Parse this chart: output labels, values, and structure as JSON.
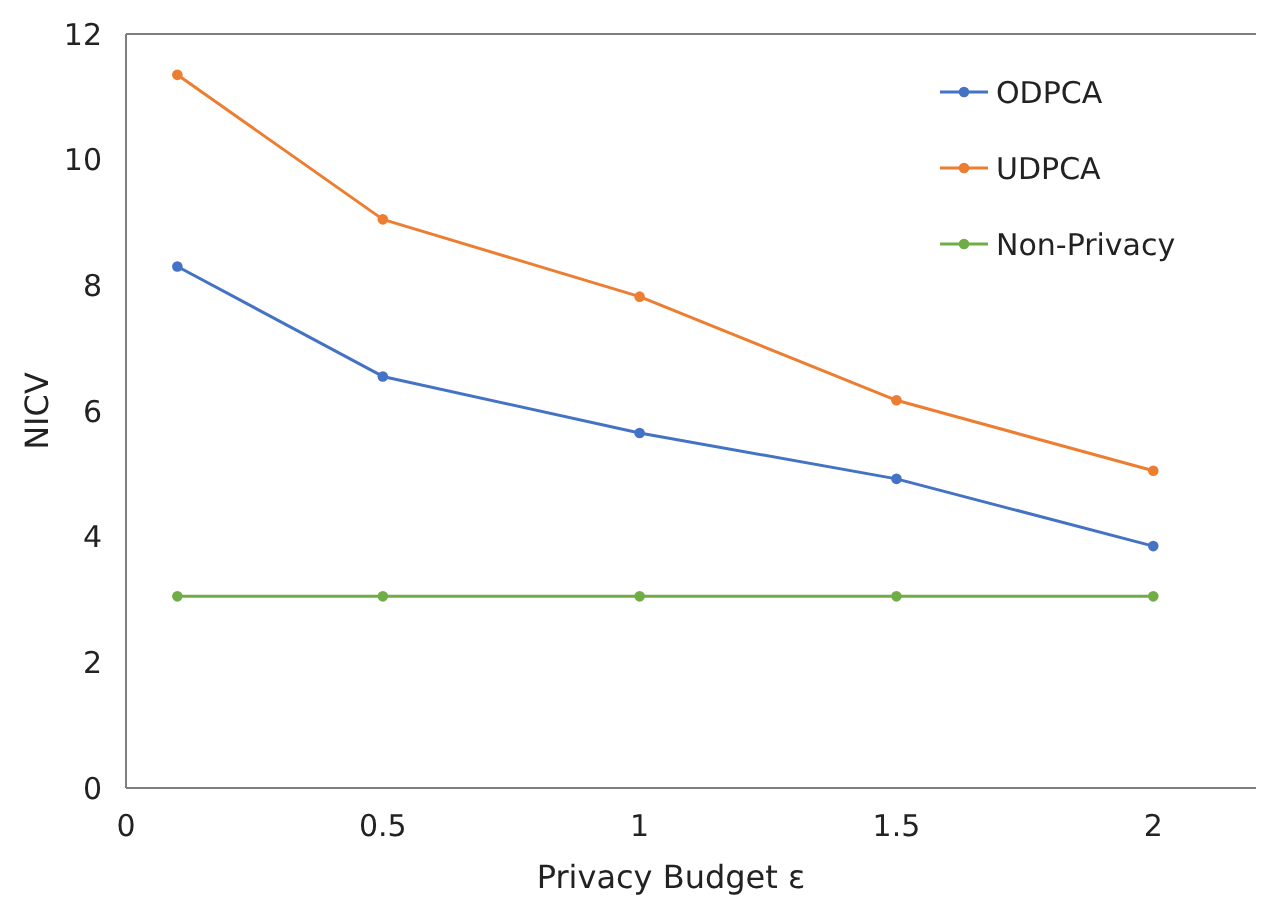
{
  "chart_data": {
    "type": "line",
    "xlabel": "Privacy Budget ε",
    "ylabel": "NICV",
    "x": [
      0.1,
      0.5,
      1,
      1.5,
      2
    ],
    "series": [
      {
        "name": "ODPCA",
        "color": "#4472c4",
        "values": [
          8.3,
          6.55,
          5.65,
          4.92,
          3.85
        ]
      },
      {
        "name": "UDPCA",
        "color": "#ed7d31",
        "values": [
          11.35,
          9.05,
          7.82,
          6.17,
          5.05
        ]
      },
      {
        "name": "Non-Privacy",
        "color": "#70ad47",
        "values": [
          3.05,
          3.05,
          3.05,
          3.05,
          3.05
        ]
      }
    ],
    "xlim": [
      0,
      2.2
    ],
    "ylim": [
      0,
      12
    ],
    "xticks": [
      0,
      0.5,
      1,
      1.5,
      2
    ],
    "yticks": [
      0,
      2,
      4,
      6,
      8,
      10,
      12
    ],
    "grid": false,
    "legend": "top right",
    "marker": "circle",
    "line_style": "solid"
  }
}
